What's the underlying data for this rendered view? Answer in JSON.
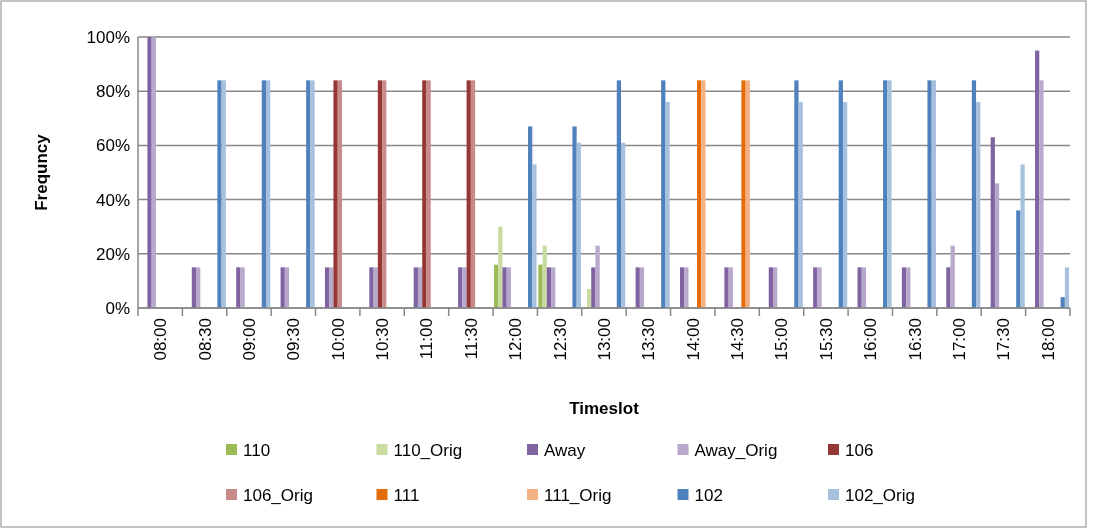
{
  "chart_data": {
    "type": "bar",
    "xlabel": "Timeslot",
    "ylabel": "Frequncy",
    "categories": [
      "08:00",
      "08:30",
      "09:00",
      "09:30",
      "10:00",
      "10:30",
      "11:00",
      "11:30",
      "12:00",
      "12:30",
      "13:00",
      "13:30",
      "14:00",
      "14:30",
      "15:00",
      "15:30",
      "16:00",
      "16:30",
      "17:00",
      "17:30",
      "18:00"
    ],
    "series": [
      {
        "name": "110",
        "color": "#9bbb59",
        "values": [
          0,
          0,
          0,
          0,
          0,
          0,
          0,
          0,
          16,
          16,
          0,
          0,
          0,
          0,
          0,
          0,
          0,
          0,
          0,
          0,
          0
        ]
      },
      {
        "name": "110_Orig",
        "color": "#c9dba0",
        "values": [
          0,
          0,
          0,
          0,
          0,
          0,
          0,
          0,
          30,
          23,
          7,
          0,
          0,
          0,
          0,
          0,
          0,
          0,
          0,
          0,
          0
        ]
      },
      {
        "name": "Away",
        "color": "#8064a2",
        "values": [
          100,
          15,
          15,
          15,
          15,
          15,
          15,
          15,
          15,
          15,
          15,
          15,
          15,
          15,
          15,
          15,
          15,
          15,
          15,
          63,
          95
        ]
      },
      {
        "name": "Away_Orig",
        "color": "#b8a8cc",
        "values": [
          100,
          15,
          15,
          15,
          15,
          15,
          15,
          15,
          15,
          15,
          23,
          15,
          15,
          15,
          15,
          15,
          15,
          15,
          23,
          46,
          84
        ]
      },
      {
        "name": "106",
        "color": "#953735",
        "values": [
          0,
          0,
          0,
          0,
          84,
          84,
          84,
          84,
          0,
          0,
          0,
          0,
          0,
          0,
          0,
          0,
          0,
          0,
          0,
          0,
          0
        ]
      },
      {
        "name": "106_Orig",
        "color": "#c98b8a",
        "values": [
          0,
          0,
          0,
          0,
          84,
          84,
          84,
          84,
          0,
          0,
          0,
          0,
          0,
          0,
          0,
          0,
          0,
          0,
          0,
          0,
          0
        ]
      },
      {
        "name": "111",
        "color": "#e46c0a",
        "values": [
          0,
          0,
          0,
          0,
          0,
          0,
          0,
          0,
          0,
          0,
          0,
          0,
          84,
          84,
          0,
          0,
          0,
          0,
          0,
          0,
          0
        ]
      },
      {
        "name": "111_Orig",
        "color": "#f4b183",
        "values": [
          0,
          0,
          0,
          0,
          0,
          0,
          0,
          0,
          0,
          0,
          0,
          0,
          84,
          84,
          0,
          0,
          0,
          0,
          0,
          0,
          0
        ]
      },
      {
        "name": "102",
        "color": "#4f81bd",
        "values": [
          0,
          84,
          84,
          84,
          0,
          0,
          0,
          0,
          67,
          67,
          84,
          84,
          0,
          0,
          84,
          84,
          84,
          84,
          84,
          36,
          4
        ]
      },
      {
        "name": "102_Orig",
        "color": "#a7c0de",
        "values": [
          0,
          84,
          84,
          84,
          0,
          0,
          0,
          0,
          53,
          61,
          61,
          76,
          0,
          0,
          76,
          76,
          84,
          84,
          76,
          53,
          15
        ]
      }
    ],
    "ylim": [
      0,
      100
    ],
    "yticks": [
      {
        "value": 0,
        "label": "0%"
      },
      {
        "value": 20,
        "label": "20%"
      },
      {
        "value": 40,
        "label": "40%"
      },
      {
        "value": 60,
        "label": "60%"
      },
      {
        "value": 80,
        "label": "80%"
      },
      {
        "value": 100,
        "label": "100%"
      }
    ],
    "grid": "y",
    "legend": "bottom"
  }
}
